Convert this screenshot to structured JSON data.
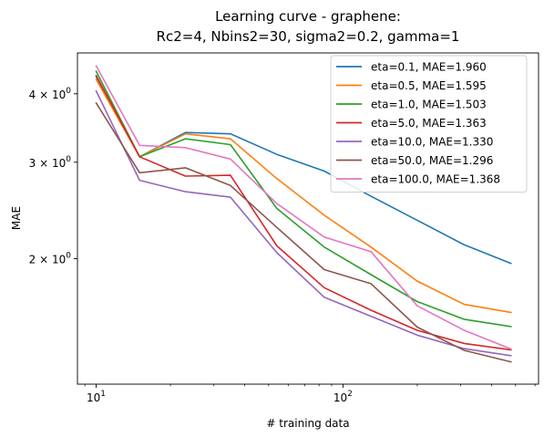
{
  "chart_data": {
    "type": "line",
    "title": "Learning curve - graphene:",
    "subtitle": "Rc2=4, Nbins2=30, sigma2=0.2, gamma=1",
    "xlabel": "# training data",
    "ylabel": "MAE",
    "xscale": "log",
    "yscale": "log",
    "xlim": [
      8.4,
      620
    ],
    "ylim": [
      1.18,
      4.75
    ],
    "x_ticks": [
      {
        "value": 10,
        "base": "10",
        "exp": "1"
      },
      {
        "value": 100,
        "base": "10",
        "exp": "2"
      }
    ],
    "y_ticks": [
      {
        "value": 2,
        "mant": "2",
        "base": "10",
        "exp": "0"
      },
      {
        "value": 3,
        "mant": "3",
        "base": "10",
        "exp": "0"
      },
      {
        "value": 4,
        "mant": "4",
        "base": "10",
        "exp": "0"
      }
    ],
    "grid": false,
    "legend_position": "top-right",
    "x": [
      10,
      15,
      23,
      35,
      54,
      84,
      130,
      200,
      310,
      480
    ],
    "series": [
      {
        "name": "eta=0.1, MAE=1.960",
        "color": "#1f77b4",
        "values": [
          4.3,
          3.07,
          3.4,
          3.38,
          3.1,
          2.89,
          2.6,
          2.35,
          2.12,
          1.96
        ]
      },
      {
        "name": "eta=0.5, MAE=1.595",
        "color": "#ff7f0e",
        "values": [
          4.25,
          3.07,
          3.38,
          3.31,
          2.8,
          2.4,
          2.1,
          1.82,
          1.65,
          1.595
        ]
      },
      {
        "name": "eta=1.0, MAE=1.503",
        "color": "#2ca02c",
        "values": [
          4.4,
          3.07,
          3.31,
          3.23,
          2.47,
          2.1,
          1.87,
          1.67,
          1.55,
          1.503
        ]
      },
      {
        "name": "eta=5.0, MAE=1.363",
        "color": "#d62728",
        "values": [
          4.32,
          3.07,
          2.83,
          2.84,
          2.11,
          1.77,
          1.61,
          1.48,
          1.4,
          1.363
        ]
      },
      {
        "name": "eta=10.0, MAE=1.330",
        "color": "#9467bd",
        "values": [
          4.05,
          2.78,
          2.65,
          2.59,
          2.05,
          1.7,
          1.57,
          1.45,
          1.37,
          1.33
        ]
      },
      {
        "name": "eta=50.0, MAE=1.296",
        "color": "#8c564b",
        "values": [
          3.85,
          2.87,
          2.93,
          2.72,
          2.28,
          1.91,
          1.8,
          1.5,
          1.36,
          1.296
        ]
      },
      {
        "name": "eta=100.0, MAE=1.368",
        "color": "#e377c2",
        "values": [
          4.5,
          3.22,
          3.19,
          3.04,
          2.52,
          2.19,
          2.06,
          1.64,
          1.48,
          1.368
        ]
      }
    ]
  }
}
